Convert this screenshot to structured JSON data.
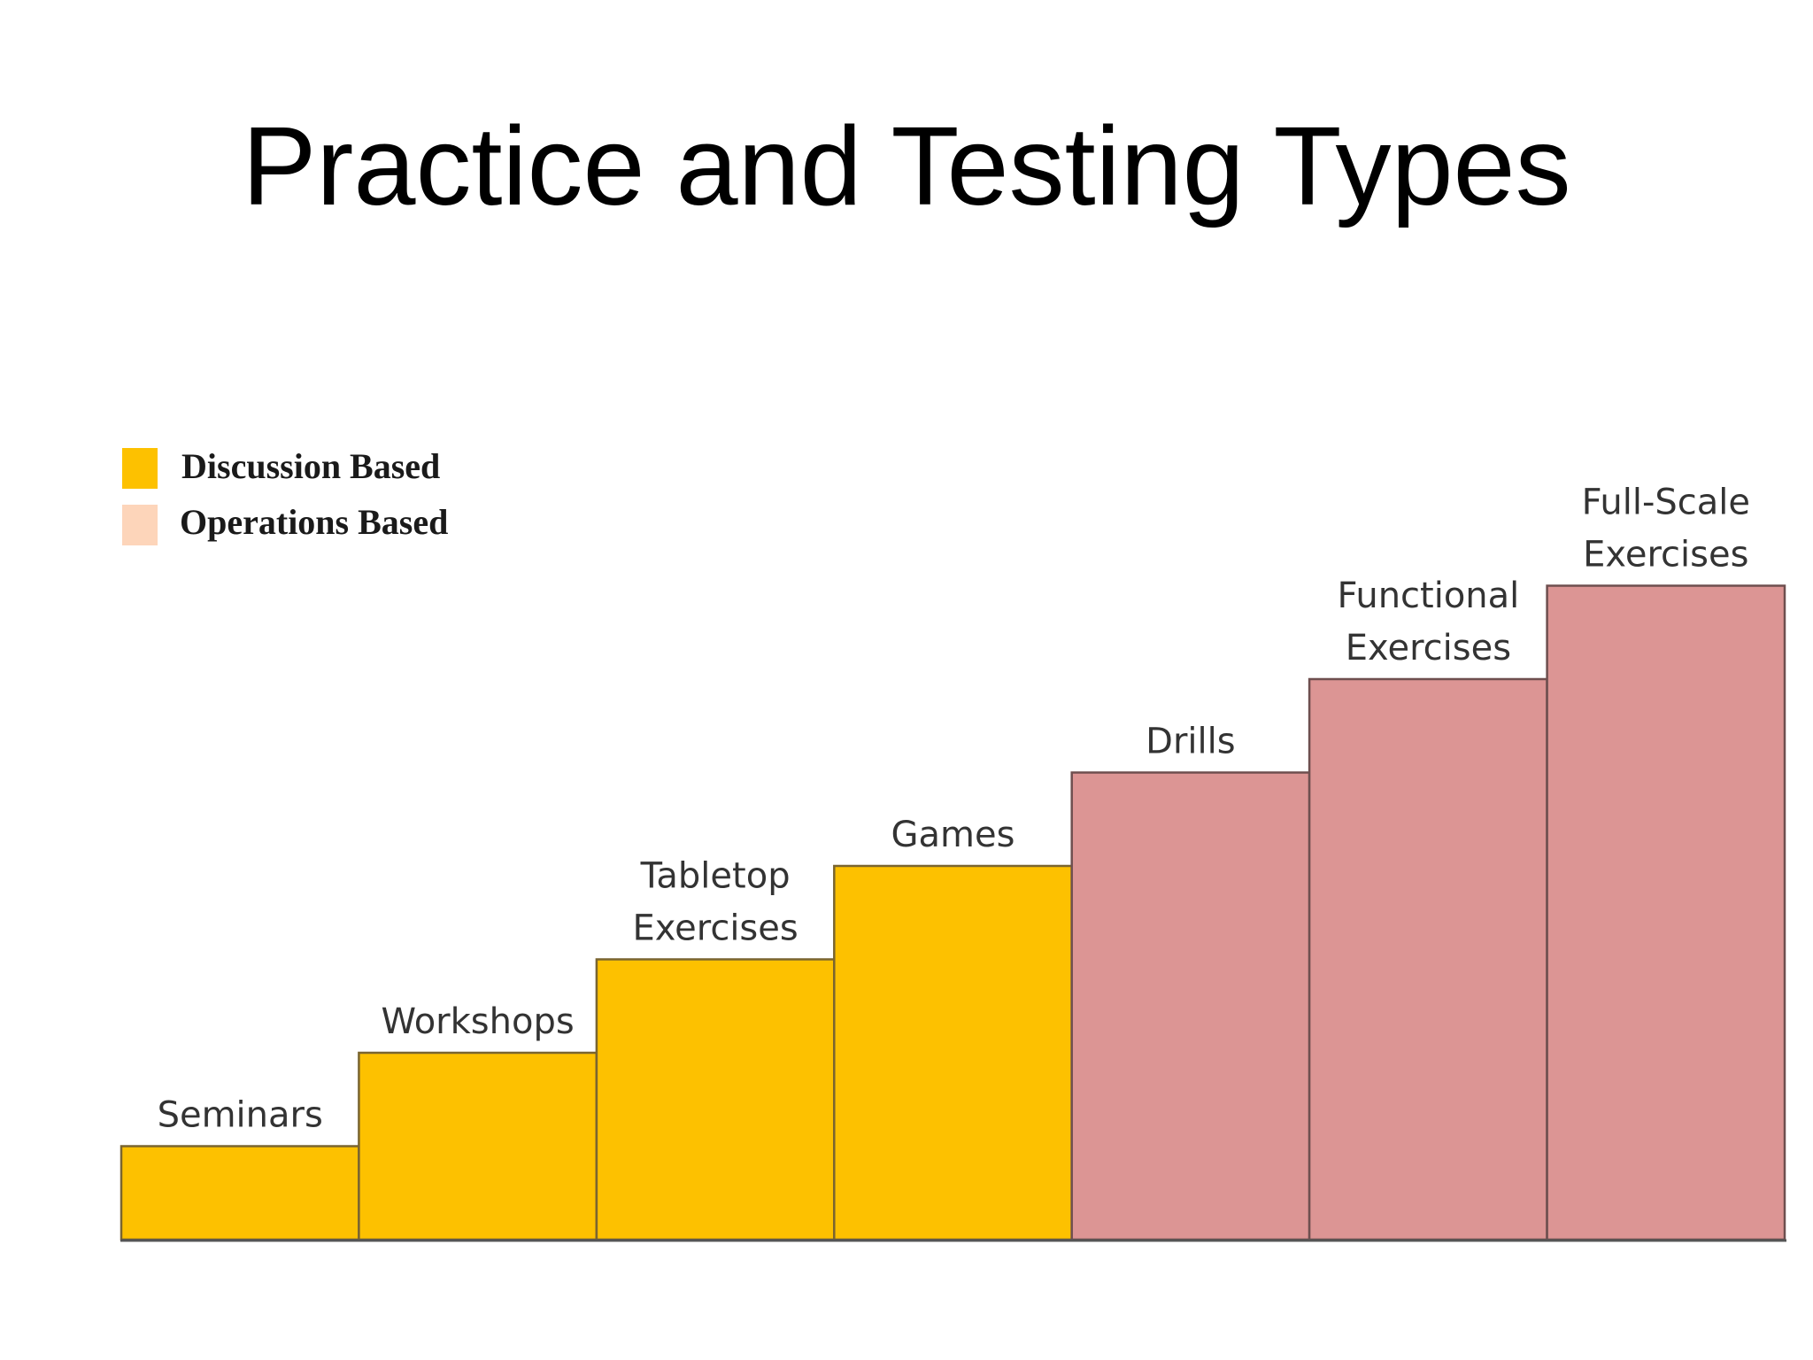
{
  "slide": {
    "title": "Practice and Testing Types"
  },
  "colors": {
    "discussion": "#FDC100",
    "operations": "#DC9594",
    "operations_legend": "#FDD5BA",
    "bar_stroke": "#6b5a45",
    "axis": "#555555"
  },
  "legend": [
    {
      "label": "Discussion Based",
      "color_key": "discussion_legend"
    },
    {
      "label": "Operations Based",
      "color_key": "operations_legend"
    }
  ],
  "chart_data": {
    "type": "bar",
    "title": "Practice and Testing Types",
    "xlabel": "",
    "ylabel": "",
    "ylim": [
      0,
      7
    ],
    "grid": false,
    "legend_position": "top-left",
    "categories": [
      [
        "Seminars"
      ],
      [
        "Workshops"
      ],
      [
        "Tabletop",
        "Exercises"
      ],
      [
        "Games"
      ],
      [
        "Drills"
      ],
      [
        "Functional",
        "Exercises"
      ],
      [
        "Full-Scale",
        "Exercises"
      ]
    ],
    "values": [
      1,
      2,
      3,
      4,
      5,
      6,
      7
    ],
    "groups": [
      "Discussion Based",
      "Discussion Based",
      "Discussion Based",
      "Discussion Based",
      "Operations Based",
      "Operations Based",
      "Operations Based"
    ]
  }
}
